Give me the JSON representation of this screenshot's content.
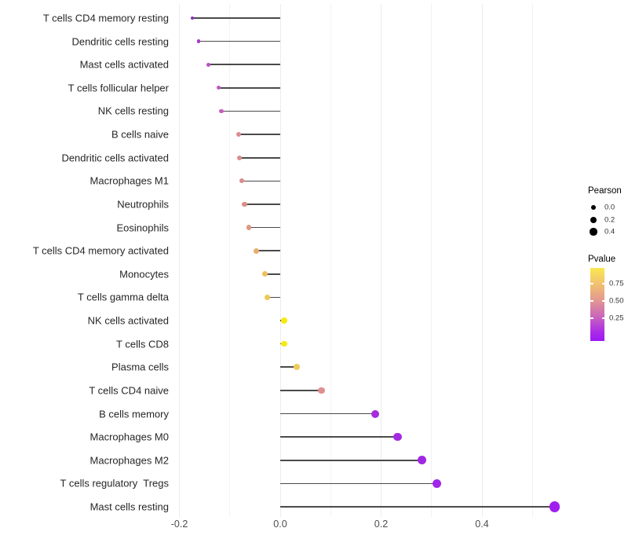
{
  "chart_data": {
    "type": "lollipop",
    "title": "",
    "xlabel": "",
    "ylabel": "",
    "x_axis": {
      "ticks": [
        "-0.2",
        "0.0",
        "0.2",
        "0.4"
      ],
      "tick_values": [
        -0.2,
        0.0,
        0.2,
        0.4
      ],
      "range": [
        -0.21,
        0.57
      ],
      "gridlines_major": [
        -0.2,
        0.0,
        0.2,
        0.4
      ],
      "gridlines_minor": [
        -0.1,
        0.1,
        0.3,
        0.5
      ],
      "baseline": 0.0
    },
    "points": [
      {
        "label": "T cells CD4 memory resting",
        "pearson": -0.174,
        "pvalue": 0.03,
        "color": "#8E2BC0"
      },
      {
        "label": "Dendritic cells resting",
        "pearson": -0.162,
        "pvalue": 0.1,
        "color": "#A43BC8"
      },
      {
        "label": "Mast cells activated",
        "pearson": -0.143,
        "pvalue": 0.14,
        "color": "#BB4EC4"
      },
      {
        "label": "T cells follicular helper",
        "pearson": -0.122,
        "pvalue": 0.17,
        "color": "#C355C0"
      },
      {
        "label": "NK cells resting",
        "pearson": -0.117,
        "pvalue": 0.19,
        "color": "#C75EBB"
      },
      {
        "label": "B cells naive",
        "pearson": -0.082,
        "pvalue": 0.45,
        "color": "#DC8C90"
      },
      {
        "label": "Dendritic cells activated",
        "pearson": -0.081,
        "pvalue": 0.45,
        "color": "#DC8C8E"
      },
      {
        "label": "Macrophages M1",
        "pearson": -0.076,
        "pvalue": 0.46,
        "color": "#DC8B8B"
      },
      {
        "label": "Neutrophils",
        "pearson": -0.071,
        "pvalue": 0.47,
        "color": "#DB8D87"
      },
      {
        "label": "Eosinophils",
        "pearson": -0.062,
        "pvalue": 0.52,
        "color": "#E0987E"
      },
      {
        "label": "T cells CD4 memory activated",
        "pearson": -0.047,
        "pvalue": 0.6,
        "color": "#E7AE70"
      },
      {
        "label": "Monocytes",
        "pearson": -0.031,
        "pvalue": 0.68,
        "color": "#ECC15B"
      },
      {
        "label": "T cells gamma delta",
        "pearson": -0.025,
        "pvalue": 0.7,
        "color": "#EFC854"
      },
      {
        "label": "NK cells activated",
        "pearson": 0.008,
        "pvalue": 0.92,
        "color": "#F6EB11"
      },
      {
        "label": "T cells CD8",
        "pearson": 0.008,
        "pvalue": 0.92,
        "color": "#F6EB11"
      },
      {
        "label": "Plasma cells",
        "pearson": 0.033,
        "pvalue": 0.7,
        "color": "#EECB5A"
      },
      {
        "label": "T cells CD4 naive",
        "pearson": 0.082,
        "pvalue": 0.46,
        "color": "#DE908E"
      },
      {
        "label": "B cells memory",
        "pearson": 0.189,
        "pvalue": 0.08,
        "color": "#A52BDD"
      },
      {
        "label": "Macrophages M0",
        "pearson": 0.233,
        "pvalue": 0.07,
        "color": "#A429E2"
      },
      {
        "label": "Macrophages M2",
        "pearson": 0.281,
        "pvalue": 0.06,
        "color": "#A227E5"
      },
      {
        "label": "T cells regulatory  Tregs",
        "pearson": 0.31,
        "pvalue": 0.05,
        "color": "#A126E8"
      },
      {
        "label": "Mast cells resting",
        "pearson": 0.544,
        "pvalue": 0.01,
        "color": "#A01FEF"
      }
    ],
    "legend": {
      "size": {
        "title": "Pearson",
        "dot_color": "#000000",
        "items": [
          {
            "label": "0.0",
            "value": 0.0
          },
          {
            "label": "0.2",
            "value": 0.2
          },
          {
            "label": "0.4",
            "value": 0.4
          }
        ]
      },
      "color": {
        "title": "Pvalue",
        "ticks": [
          {
            "label": "0.75",
            "value": 0.75
          },
          {
            "label": "0.50",
            "value": 0.5
          },
          {
            "label": "0.25",
            "value": 0.25
          }
        ],
        "gradient": [
          {
            "pos": 0.0,
            "color": "#F9E850"
          },
          {
            "pos": 0.21,
            "color": "#F2C36F"
          },
          {
            "pos": 0.45,
            "color": "#E29690"
          },
          {
            "pos": 0.69,
            "color": "#C75FC2"
          },
          {
            "pos": 0.88,
            "color": "#A92BE8"
          },
          {
            "pos": 1.0,
            "color": "#9E19F5"
          }
        ]
      }
    },
    "style_colors": {
      "stem": "#4B4B4B",
      "gridline_major": "#ECECEC",
      "gridline_minor": "#F2F2F2",
      "axis_text": "#4D4D4D",
      "label_text": "#262626",
      "background": "#FFFFFF"
    }
  }
}
